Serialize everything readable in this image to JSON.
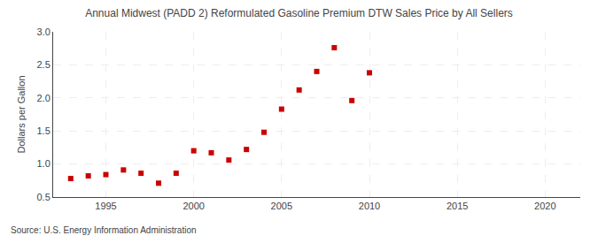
{
  "chart_data": {
    "type": "scatter",
    "title": "Annual Midwest (PADD 2) Reformulated Gasoline Premium DTW Sales Price by All Sellers",
    "ylabel": "Dollars per Gallon",
    "annotation": "Source: U.S. Energy Information Administration",
    "x": [
      1993,
      1994,
      1995,
      1996,
      1997,
      1998,
      1999,
      2000,
      2001,
      2002,
      2003,
      2004,
      2005,
      2006,
      2007,
      2008,
      2009,
      2010
    ],
    "values": [
      0.78,
      0.82,
      0.84,
      0.91,
      0.86,
      0.71,
      0.86,
      1.2,
      1.17,
      1.06,
      1.22,
      1.48,
      1.83,
      2.12,
      2.4,
      2.76,
      1.96,
      2.38
    ],
    "color": "#cc0000",
    "marker": "square",
    "xlim": [
      1992,
      2022
    ],
    "ylim": [
      0.5,
      3.0
    ],
    "xticks": [
      1995,
      2000,
      2005,
      2010,
      2015,
      2020
    ],
    "yticks": [
      0.5,
      {
        "value": 1.0,
        "label": "1.0"
      },
      1.5,
      {
        "value": 2.0,
        "label": "2.0"
      },
      2.5,
      {
        "value": 3.0,
        "label": "3.0"
      }
    ],
    "grid": true
  }
}
